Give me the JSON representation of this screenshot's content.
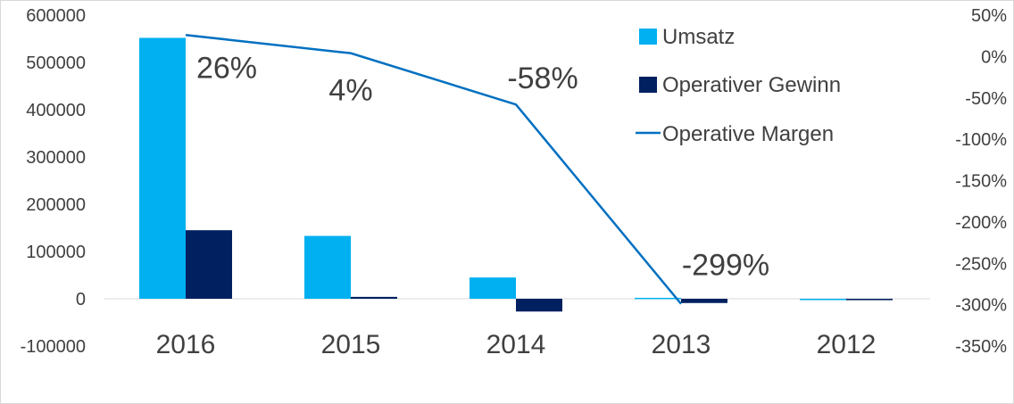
{
  "chart_data": {
    "type": "bar",
    "categories": [
      "2016",
      "2015",
      "2014",
      "2013",
      "2012"
    ],
    "series": [
      {
        "name": "Umsatz",
        "kind": "bar",
        "axis": "left",
        "color": "#00b0f0",
        "values": [
          552000,
          133000,
          45000,
          2000,
          0
        ]
      },
      {
        "name": "Operativer Gewinn",
        "kind": "bar",
        "axis": "left",
        "color": "#002060",
        "values": [
          145000,
          4000,
          -27000,
          -9000,
          -3000
        ]
      },
      {
        "name": "Operative Margen",
        "kind": "line",
        "axis": "right",
        "color": "#0070c0",
        "values": [
          26,
          4,
          -58,
          -299,
          null
        ]
      }
    ],
    "data_labels": [
      "26%",
      "4%",
      "-58%",
      "-299%"
    ],
    "y_left": {
      "min": -100000,
      "max": 600000,
      "ticks": [
        "600000",
        "500000",
        "400000",
        "300000",
        "200000",
        "100000",
        "0",
        "-100000"
      ]
    },
    "y_right": {
      "min": -350,
      "max": 50,
      "ticks": [
        "50%",
        "0%",
        "-50%",
        "-100%",
        "-150%",
        "-200%",
        "-250%",
        "-300%",
        "-350%"
      ]
    },
    "legend": [
      "Umsatz",
      "Operativer Gewinn",
      "Operative Margen"
    ],
    "legend_position": "top-right",
    "grid": false,
    "title": "",
    "xlabel": "",
    "ylabel": ""
  }
}
